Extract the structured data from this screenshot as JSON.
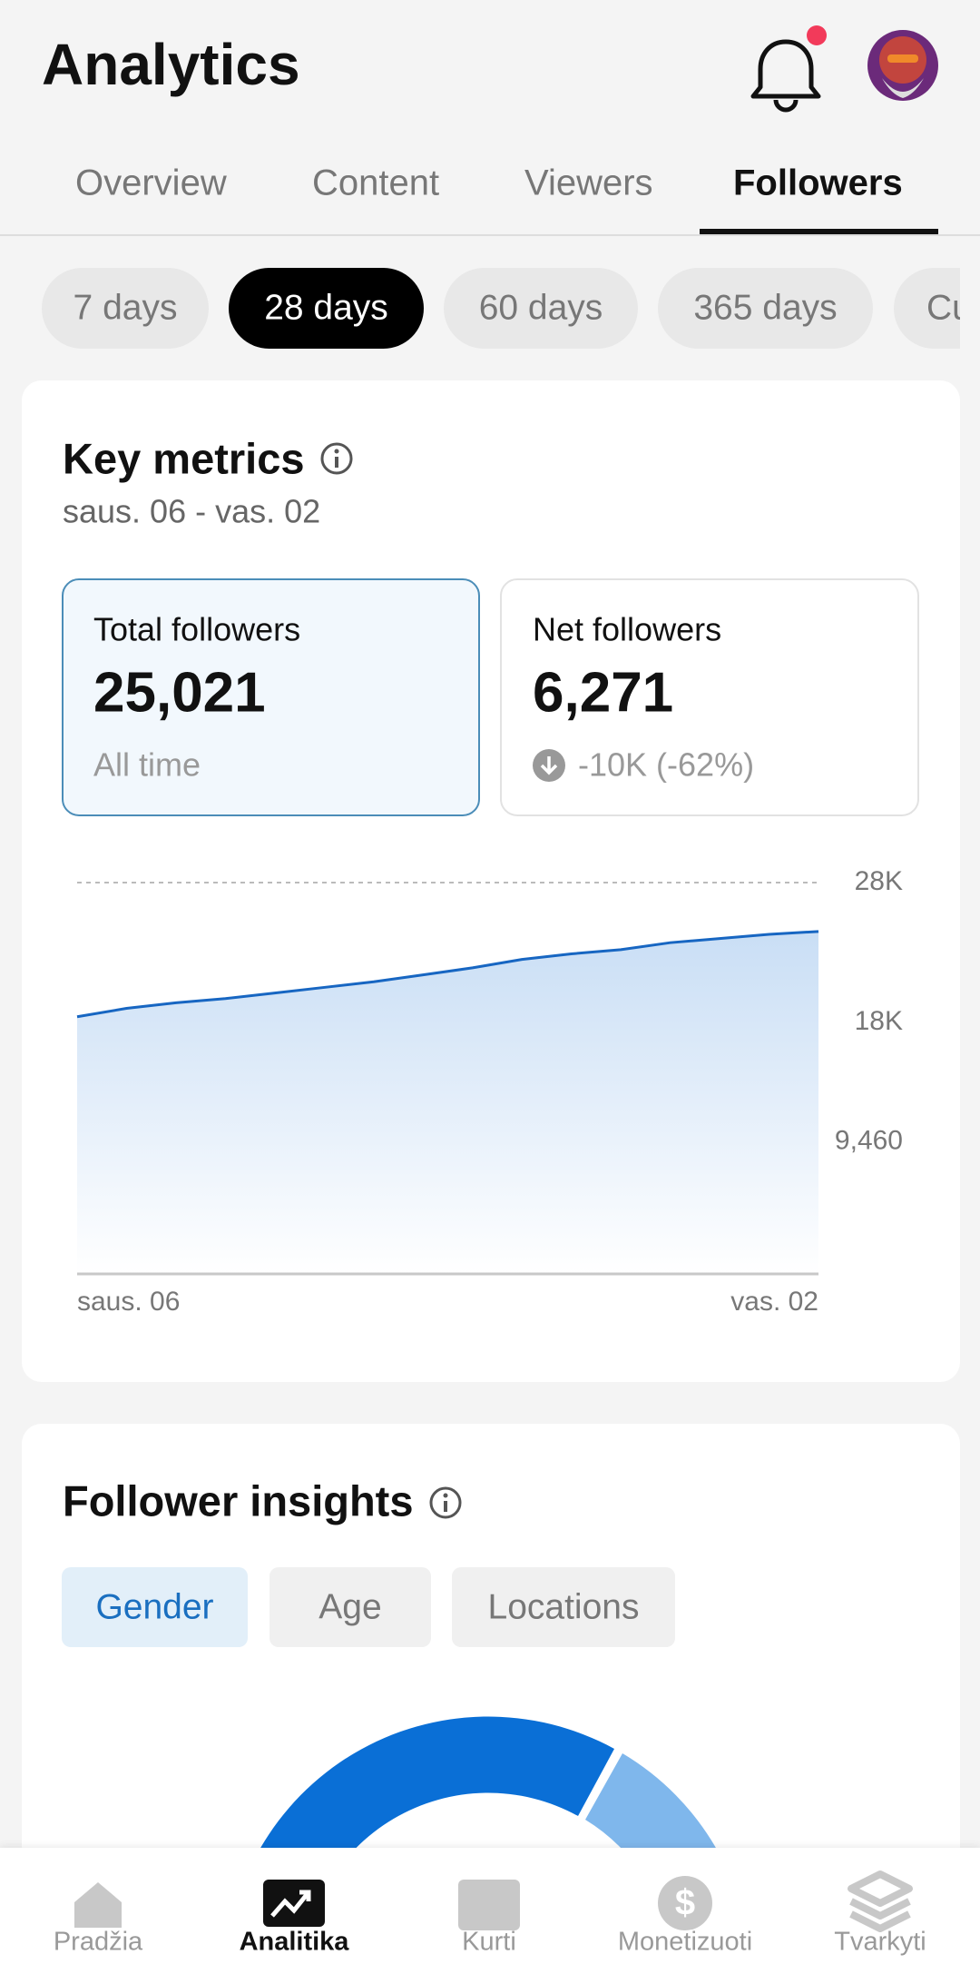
{
  "header": {
    "title": "Analytics"
  },
  "tabs": [
    "Overview",
    "Content",
    "Viewers",
    "Followers"
  ],
  "ranges": [
    "7 days",
    "28 days",
    "60 days",
    "365 days",
    "Cu"
  ],
  "key_metrics": {
    "title": "Key metrics",
    "date_range": "saus. 06 - vas. 02",
    "cards": [
      {
        "label": "Total followers",
        "value": "25,021",
        "note": "All time"
      },
      {
        "label": "Net followers",
        "value": "6,271",
        "note": "-10K (-62%)"
      }
    ]
  },
  "chart_data": {
    "type": "area",
    "color": "#1766c2",
    "categories": [
      "saus. 06",
      null,
      null,
      null,
      null,
      null,
      null,
      null,
      null,
      null,
      null,
      null,
      null,
      null,
      null,
      "vas. 02"
    ],
    "values": [
      18400,
      19000,
      19400,
      19700,
      20100,
      20500,
      20900,
      21400,
      21900,
      22500,
      22900,
      23200,
      23700,
      24000,
      24300,
      24500
    ],
    "ylim": [
      0,
      28000
    ],
    "yticks": [
      {
        "value": 9460,
        "label": "9,460"
      },
      {
        "value": 18000,
        "label": "18K"
      },
      {
        "value": 28000,
        "label": "28K"
      }
    ],
    "grid": true
  },
  "insights": {
    "title": "Follower insights",
    "tabs": [
      "Gender",
      "Age",
      "Locations"
    ]
  },
  "nav": [
    "Pradžia",
    "Analitika",
    "Kurti",
    "Monetizuoti",
    "Tvarkyti"
  ]
}
